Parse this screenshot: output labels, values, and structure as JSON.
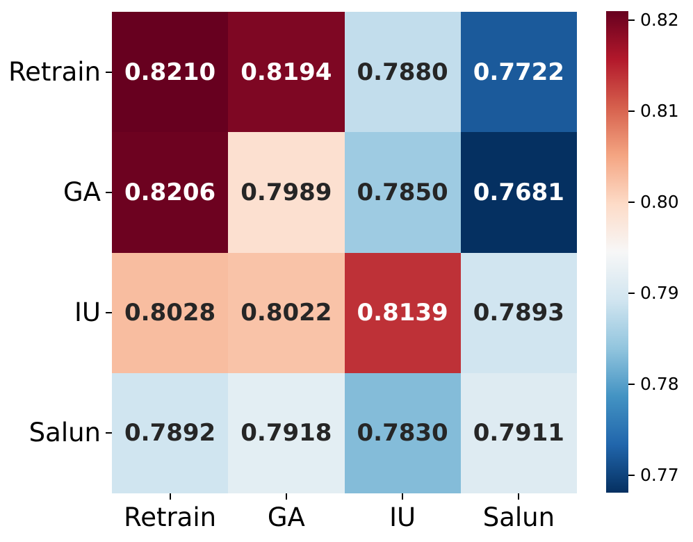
{
  "chart_data": {
    "type": "heatmap",
    "title": "",
    "xlabel": "",
    "ylabel": "",
    "x_categories": [
      "Retrain",
      "GA",
      "IU",
      "Salun"
    ],
    "y_categories": [
      "Retrain",
      "GA",
      "IU",
      "Salun"
    ],
    "values": [
      [
        0.821,
        0.8194,
        0.788,
        0.7722
      ],
      [
        0.8206,
        0.7989,
        0.785,
        0.7681
      ],
      [
        0.8028,
        0.8022,
        0.8139,
        0.7893
      ],
      [
        0.7892,
        0.7918,
        0.783,
        0.7911
      ]
    ],
    "cell_labels": [
      [
        "0.8210",
        "0.8194",
        "0.7880",
        "0.7722"
      ],
      [
        "0.8206",
        "0.7989",
        "0.7850",
        "0.7681"
      ],
      [
        "0.8028",
        "0.8022",
        "0.8139",
        "0.7893"
      ],
      [
        "0.7892",
        "0.7918",
        "0.7830",
        "0.7911"
      ]
    ],
    "vmin": 0.7681,
    "vmax": 0.821,
    "colormap": "RdBu_r",
    "grid": false,
    "legend": "none",
    "colorbar": {
      "position": "right",
      "ticks": [
        {
          "label": "0.82",
          "value": 0.82
        },
        {
          "label": "0.81",
          "value": 0.81
        },
        {
          "label": "0.80",
          "value": 0.8
        },
        {
          "label": "0.79",
          "value": 0.79
        },
        {
          "label": "0.78",
          "value": 0.78
        },
        {
          "label": "0.77",
          "value": 0.77
        }
      ]
    }
  },
  "presentation": {
    "background_color": "#ffffff",
    "axis_text_color": "#000000",
    "annotation_dark_color": "#262626",
    "annotation_light_color": "#ffffff",
    "colormap_stops_low_to_high": [
      "#053061",
      "#2166ac",
      "#4393c3",
      "#92c5de",
      "#d1e5f0",
      "#f7f7f7",
      "#fddbc7",
      "#f4a582",
      "#d6604d",
      "#b2182b",
      "#67001f"
    ]
  }
}
